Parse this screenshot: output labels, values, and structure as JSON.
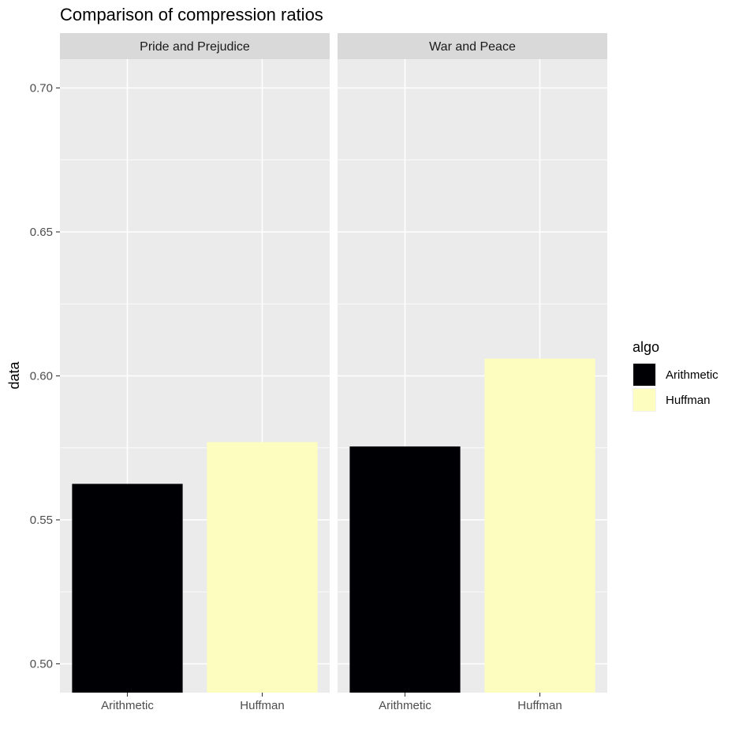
{
  "chart_data": {
    "type": "bar",
    "title": "Comparison of compression ratios",
    "xlabel": "",
    "ylabel": "data",
    "ylim": [
      0.49,
      0.71
    ],
    "yticks": [
      "0.50",
      "0.55",
      "0.60",
      "0.65",
      "0.70"
    ],
    "ytick_values": [
      0.5,
      0.55,
      0.6,
      0.65,
      0.7
    ],
    "y_minor_values": [
      0.525,
      0.575,
      0.625,
      0.675
    ],
    "categories": [
      "Arithmetic",
      "Huffman"
    ],
    "facets": [
      {
        "label": "Pride and Prejudice",
        "bars": [
          {
            "category": "Arithmetic",
            "value": 0.5625
          },
          {
            "category": "Huffman",
            "value": 0.577
          }
        ]
      },
      {
        "label": "War and Peace",
        "bars": [
          {
            "category": "Arithmetic",
            "value": 0.5755
          },
          {
            "category": "Huffman",
            "value": 0.606
          }
        ]
      }
    ],
    "legend": {
      "title": "algo",
      "placement": "right",
      "entries": [
        {
          "name": "Arithmetic",
          "color": "#000004"
        },
        {
          "name": "Huffman",
          "color": "#FCFDBF"
        }
      ]
    },
    "panel_background": "#EBEBEB",
    "strip_background": "#D9D9D9",
    "grid": true
  }
}
